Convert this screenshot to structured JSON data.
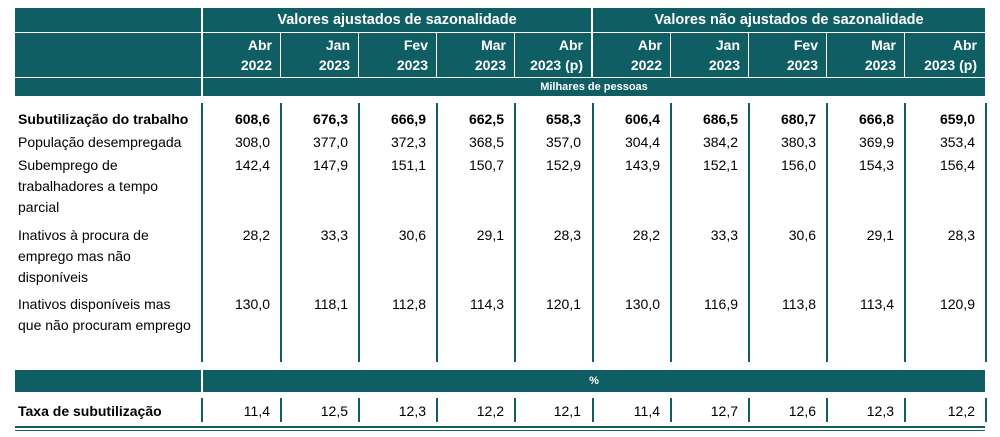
{
  "header": {
    "group_adjusted": "Valores ajustados de sazonalidade",
    "group_not_adjusted": "Valores não ajustados de sazonalidade",
    "columns": [
      {
        "month": "Abr",
        "year": "2022"
      },
      {
        "month": "Jan",
        "year": "2023"
      },
      {
        "month": "Fev",
        "year": "2023"
      },
      {
        "month": "Mar",
        "year": "2023"
      },
      {
        "month": "Abr",
        "year": "2023 (p)"
      },
      {
        "month": "Abr",
        "year": "2022"
      },
      {
        "month": "Jan",
        "year": "2023"
      },
      {
        "month": "Fev",
        "year": "2023"
      },
      {
        "month": "Mar",
        "year": "2023"
      },
      {
        "month": "Abr",
        "year": "2023 (p)"
      }
    ],
    "units_thousands": "Milhares de pessoas",
    "units_percent": "%"
  },
  "rows": [
    {
      "label": "Subutilização do trabalho",
      "bold": true,
      "values": [
        "608,6",
        "676,3",
        "666,9",
        "662,5",
        "658,3",
        "606,4",
        "686,5",
        "680,7",
        "666,8",
        "659,0"
      ]
    },
    {
      "label": "População desempregada",
      "bold": false,
      "values": [
        "308,0",
        "377,0",
        "372,3",
        "368,5",
        "357,0",
        "304,4",
        "384,2",
        "380,3",
        "369,9",
        "353,4"
      ]
    },
    {
      "label": "Subemprego de trabalhadores a tempo parcial",
      "bold": false,
      "values": [
        "142,4",
        "147,9",
        "151,1",
        "150,7",
        "152,9",
        "143,9",
        "152,1",
        "156,0",
        "154,3",
        "156,4"
      ]
    },
    {
      "label": "Inativos à procura de emprego mas não disponíveis",
      "bold": false,
      "values": [
        "28,2",
        "33,3",
        "30,6",
        "29,1",
        "28,3",
        "28,2",
        "33,3",
        "30,6",
        "29,1",
        "28,3"
      ]
    },
    {
      "label": "Inativos disponíveis mas que não procuram emprego",
      "bold": false,
      "values": [
        "130,0",
        "118,1",
        "112,8",
        "114,3",
        "120,1",
        "130,0",
        "116,9",
        "113,8",
        "113,4",
        "120,9"
      ]
    }
  ],
  "rate_row": {
    "label": "Taxa de subutilização",
    "values": [
      "11,4",
      "12,5",
      "12,3",
      "12,2",
      "12,1",
      "11,4",
      "12,7",
      "12,6",
      "12,3",
      "12,2"
    ]
  },
  "colors": {
    "teal": "#0f5e63"
  }
}
